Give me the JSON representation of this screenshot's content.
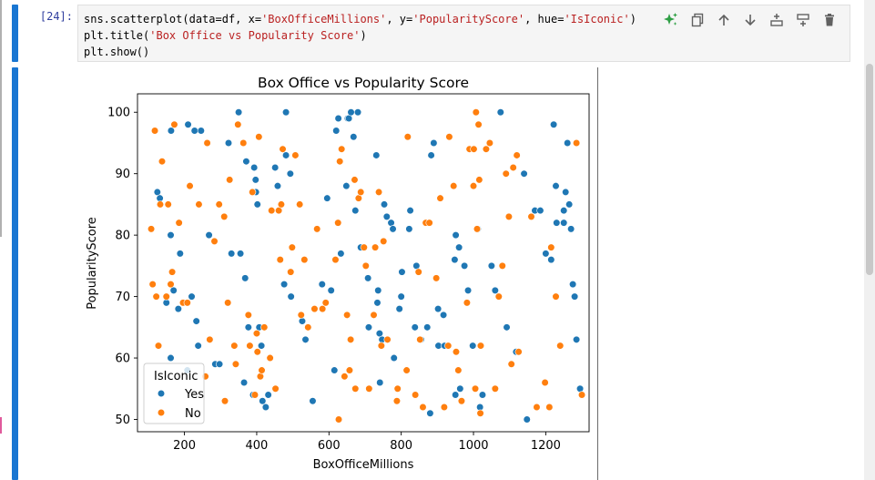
{
  "cell": {
    "prompt": "[24]:",
    "code_tokens": [
      [
        "sns.scatterplot(data=df, x=",
        "c"
      ],
      [
        "'BoxOfficeMillions'",
        "s"
      ],
      [
        ", y=",
        "c"
      ],
      [
        "'PopularityScore'",
        "s"
      ],
      [
        ", hue=",
        "c"
      ],
      [
        "'IsIconic'",
        "s"
      ],
      [
        ")\n",
        "c"
      ],
      [
        "plt.title(",
        "c"
      ],
      [
        "'Box Office vs Popularity Score'",
        "s"
      ],
      [
        ")\n",
        "c"
      ],
      [
        "plt.show()",
        "c"
      ]
    ]
  },
  "toolbar": {
    "icons": [
      "sparkle-icon",
      "copy-icon",
      "arrow-up-icon",
      "arrow-down-icon",
      "insert-above-icon",
      "insert-below-icon",
      "trash-icon"
    ],
    "colors": {
      "sparkle": "#2e9e44",
      "icon": "#616161"
    }
  },
  "chart_data": {
    "type": "scatter",
    "title": "Box Office vs Popularity Score",
    "xlabel": "BoxOfficeMillions",
    "ylabel": "PopularityScore",
    "xlim": [
      70,
      1320
    ],
    "ylim": [
      48,
      103
    ],
    "xticks": [
      200,
      400,
      600,
      800,
      1000,
      1200
    ],
    "yticks": [
      50,
      60,
      70,
      80,
      90,
      100
    ],
    "grid": false,
    "legend": {
      "title": "IsIconic",
      "placement": "lower-left",
      "entries": [
        "Yes",
        "No"
      ]
    },
    "series": [
      {
        "name": "Yes",
        "color": "#1f77b4",
        "points": [
          [
            125,
            87
          ],
          [
            132,
            86
          ],
          [
            150,
            69
          ],
          [
            163,
            97
          ],
          [
            162,
            80
          ],
          [
            162,
            60
          ],
          [
            170,
            71
          ],
          [
            188,
            77
          ],
          [
            183,
            68
          ],
          [
            210,
            98
          ],
          [
            208,
            58
          ],
          [
            220,
            70
          ],
          [
            228,
            97
          ],
          [
            233,
            66
          ],
          [
            238,
            62
          ],
          [
            246,
            97
          ],
          [
            268,
            80
          ],
          [
            285,
            59
          ],
          [
            297,
            59
          ],
          [
            322,
            95
          ],
          [
            330,
            77
          ],
          [
            341,
            59
          ],
          [
            350,
            100
          ],
          [
            355,
            77
          ],
          [
            365,
            56
          ],
          [
            368,
            73
          ],
          [
            371,
            92
          ],
          [
            377,
            65
          ],
          [
            380,
            62
          ],
          [
            390,
            54
          ],
          [
            393,
            91
          ],
          [
            397,
            89
          ],
          [
            398,
            87
          ],
          [
            402,
            85
          ],
          [
            407,
            65
          ],
          [
            413,
            62
          ],
          [
            416,
            53
          ],
          [
            425,
            52
          ],
          [
            432,
            54
          ],
          [
            451,
            91
          ],
          [
            458,
            88
          ],
          [
            476,
            72
          ],
          [
            481,
            93
          ],
          [
            481,
            100
          ],
          [
            493,
            90
          ],
          [
            495,
            70
          ],
          [
            526,
            66
          ],
          [
            535,
            63
          ],
          [
            555,
            53
          ],
          [
            581,
            72
          ],
          [
            595,
            86
          ],
          [
            606,
            71
          ],
          [
            615,
            58
          ],
          [
            620,
            97
          ],
          [
            626,
            99
          ],
          [
            633,
            77
          ],
          [
            648,
            88
          ],
          [
            652,
            99
          ],
          [
            655,
            99
          ],
          [
            661,
            100
          ],
          [
            668,
            96
          ],
          [
            673,
            84
          ],
          [
            680,
            100
          ],
          [
            688,
            78
          ],
          [
            708,
            73
          ],
          [
            710,
            65
          ],
          [
            731,
            93
          ],
          [
            734,
            69
          ],
          [
            736,
            71
          ],
          [
            740,
            64
          ],
          [
            741,
            56
          ],
          [
            747,
            63
          ],
          [
            753,
            85
          ],
          [
            760,
            83
          ],
          [
            772,
            82
          ],
          [
            777,
            81
          ],
          [
            780,
            60
          ],
          [
            795,
            68
          ],
          [
            800,
            70
          ],
          [
            802,
            74
          ],
          [
            822,
            81
          ],
          [
            825,
            84
          ],
          [
            838,
            65
          ],
          [
            842,
            75
          ],
          [
            855,
            63
          ],
          [
            872,
            65
          ],
          [
            880,
            51
          ],
          [
            883,
            93
          ],
          [
            890,
            95
          ],
          [
            902,
            68
          ],
          [
            903,
            62
          ],
          [
            917,
            67
          ],
          [
            920,
            62
          ],
          [
            948,
            76
          ],
          [
            950,
            54
          ],
          [
            951,
            80
          ],
          [
            960,
            78
          ],
          [
            963,
            55
          ],
          [
            975,
            75
          ],
          [
            985,
            71
          ],
          [
            998,
            62
          ],
          [
            1000,
            94
          ],
          [
            1012,
            81
          ],
          [
            1018,
            52
          ],
          [
            1025,
            54
          ],
          [
            1050,
            75
          ],
          [
            1060,
            71
          ],
          [
            1075,
            100
          ],
          [
            1092,
            65
          ],
          [
            1118,
            61
          ],
          [
            1140,
            90
          ],
          [
            1148,
            50
          ],
          [
            1170,
            84
          ],
          [
            1185,
            84
          ],
          [
            1200,
            77
          ],
          [
            1215,
            76
          ],
          [
            1222,
            98
          ],
          [
            1228,
            88
          ],
          [
            1230,
            82
          ],
          [
            1250,
            82
          ],
          [
            1250,
            84
          ],
          [
            1255,
            87
          ],
          [
            1260,
            95
          ],
          [
            1265,
            85
          ],
          [
            1270,
            81
          ],
          [
            1275,
            72
          ],
          [
            1280,
            70
          ],
          [
            1285,
            63
          ],
          [
            1295,
            55
          ]
        ]
      },
      {
        "name": "No",
        "color": "#ff7f0e",
        "points": [
          [
            108,
            81
          ],
          [
            112,
            72
          ],
          [
            118,
            97
          ],
          [
            122,
            70
          ],
          [
            128,
            62
          ],
          [
            133,
            85
          ],
          [
            138,
            92
          ],
          [
            150,
            70
          ],
          [
            155,
            85
          ],
          [
            162,
            72
          ],
          [
            166,
            74
          ],
          [
            172,
            98
          ],
          [
            185,
            82
          ],
          [
            196,
            69
          ],
          [
            208,
            69
          ],
          [
            215,
            88
          ],
          [
            240,
            85
          ],
          [
            258,
            57
          ],
          [
            263,
            95
          ],
          [
            270,
            63
          ],
          [
            283,
            79
          ],
          [
            296,
            85
          ],
          [
            310,
            83
          ],
          [
            312,
            53
          ],
          [
            320,
            69
          ],
          [
            325,
            89
          ],
          [
            338,
            62
          ],
          [
            342,
            59
          ],
          [
            348,
            98
          ],
          [
            363,
            95
          ],
          [
            377,
            67
          ],
          [
            381,
            62
          ],
          [
            388,
            87
          ],
          [
            395,
            54
          ],
          [
            400,
            64
          ],
          [
            402,
            61
          ],
          [
            406,
            96
          ],
          [
            410,
            57
          ],
          [
            414,
            58
          ],
          [
            421,
            65
          ],
          [
            437,
            60
          ],
          [
            441,
            84
          ],
          [
            452,
            55
          ],
          [
            461,
            84
          ],
          [
            465,
            76
          ],
          [
            468,
            85
          ],
          [
            472,
            94
          ],
          [
            494,
            74
          ],
          [
            498,
            78
          ],
          [
            507,
            93
          ],
          [
            519,
            85
          ],
          [
            523,
            67
          ],
          [
            532,
            76
          ],
          [
            542,
            65
          ],
          [
            560,
            68
          ],
          [
            567,
            81
          ],
          [
            582,
            68
          ],
          [
            591,
            69
          ],
          [
            618,
            76
          ],
          [
            625,
            82
          ],
          [
            627,
            50
          ],
          [
            630,
            92
          ],
          [
            635,
            94
          ],
          [
            643,
            57
          ],
          [
            650,
            67
          ],
          [
            657,
            58
          ],
          [
            660,
            63
          ],
          [
            671,
            89
          ],
          [
            673,
            55
          ],
          [
            682,
            86
          ],
          [
            688,
            87
          ],
          [
            697,
            78
          ],
          [
            702,
            75
          ],
          [
            711,
            55
          ],
          [
            724,
            67
          ],
          [
            728,
            78
          ],
          [
            738,
            87
          ],
          [
            745,
            62
          ],
          [
            751,
            79
          ],
          [
            762,
            63
          ],
          [
            788,
            53
          ],
          [
            790,
            55
          ],
          [
            815,
            58
          ],
          [
            818,
            96
          ],
          [
            839,
            54
          ],
          [
            848,
            74
          ],
          [
            852,
            63
          ],
          [
            860,
            52
          ],
          [
            868,
            82
          ],
          [
            878,
            82
          ],
          [
            897,
            73
          ],
          [
            908,
            86
          ],
          [
            919,
            52
          ],
          [
            930,
            62
          ],
          [
            933,
            96
          ],
          [
            945,
            88
          ],
          [
            952,
            61
          ],
          [
            958,
            58
          ],
          [
            967,
            53
          ],
          [
            982,
            69
          ],
          [
            989,
            94
          ],
          [
            1000,
            88
          ],
          [
            1001,
            94
          ],
          [
            1005,
            55
          ],
          [
            1007,
            100
          ],
          [
            1010,
            81
          ],
          [
            1014,
            98
          ],
          [
            1016,
            89
          ],
          [
            1019,
            51
          ],
          [
            1020,
            62
          ],
          [
            1035,
            94
          ],
          [
            1045,
            95
          ],
          [
            1060,
            55
          ],
          [
            1070,
            70
          ],
          [
            1080,
            75
          ],
          [
            1090,
            90
          ],
          [
            1098,
            83
          ],
          [
            1105,
            59
          ],
          [
            1110,
            91
          ],
          [
            1120,
            93
          ],
          [
            1125,
            61
          ],
          [
            1160,
            83
          ],
          [
            1175,
            52
          ],
          [
            1198,
            56
          ],
          [
            1210,
            52
          ],
          [
            1215,
            78
          ],
          [
            1228,
            70
          ],
          [
            1240,
            62
          ],
          [
            1285,
            95
          ],
          [
            1300,
            54
          ]
        ]
      }
    ]
  }
}
